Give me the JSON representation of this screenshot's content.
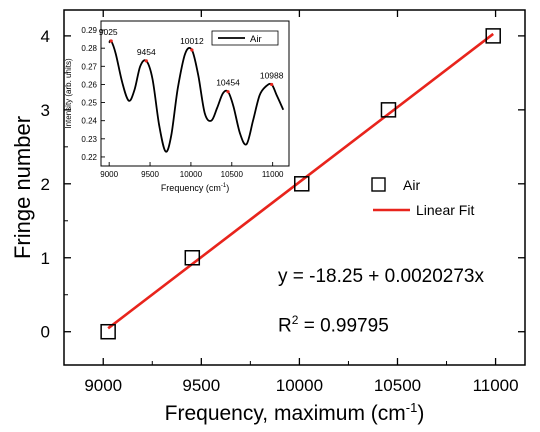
{
  "chart_data": [
    {
      "type": "scatter",
      "role": "main",
      "xlabel": "Frequency, maximum (cm",
      "xlabel_sup": "-1",
      "xlabel_tail": ")",
      "ylabel": "Fringe number",
      "xlim": [
        8800,
        11150
      ],
      "ylim": [
        -0.45,
        4.35
      ],
      "xticks": [
        9000,
        9500,
        10000,
        10500,
        11000
      ],
      "yticks": [
        0,
        1,
        2,
        3,
        4
      ],
      "grid": false,
      "legend_position": "center-right",
      "series": [
        {
          "name": "Air",
          "marker": "open-square",
          "color": "#000000",
          "x": [
            9025,
            9454,
            10012,
            10454,
            10988
          ],
          "y": [
            0,
            1,
            2,
            3,
            4
          ]
        },
        {
          "name": "Linear Fit",
          "kind": "line",
          "color": "#e8241c",
          "x": [
            9025,
            10988
          ],
          "y": [
            0.046,
            4.026
          ]
        }
      ],
      "annotations": {
        "equation": "y = -18.25 + 0.0020273x",
        "r2_label": "R",
        "r2_sup": "2",
        "r2_value": " = 0.99795"
      }
    },
    {
      "type": "line",
      "role": "inset",
      "xlabel": "Frequency (cm",
      "xlabel_sup": "-1",
      "xlabel_tail": ")",
      "ylabel": "Intensity (arb. units)",
      "xlim": [
        8900,
        11200
      ],
      "ylim": [
        0.215,
        0.295
      ],
      "xticks": [
        9000,
        9500,
        10000,
        10500,
        11000
      ],
      "yticks": [
        0.22,
        0.23,
        0.24,
        0.25,
        0.26,
        0.27,
        0.28,
        0.29
      ],
      "legend_position": "top-right",
      "series": [
        {
          "name": "Air",
          "color": "#000000",
          "x": [
            9000,
            9025,
            9080,
            9160,
            9240,
            9310,
            9380,
            9454,
            9530,
            9610,
            9690,
            9760,
            9840,
            9930,
            10012,
            10090,
            10170,
            10250,
            10320,
            10390,
            10454,
            10520,
            10600,
            10680,
            10760,
            10840,
            10920,
            10988,
            11050,
            11130
          ],
          "y": [
            0.283,
            0.284,
            0.277,
            0.261,
            0.251,
            0.257,
            0.27,
            0.273,
            0.263,
            0.238,
            0.223,
            0.232,
            0.258,
            0.277,
            0.279,
            0.265,
            0.244,
            0.24,
            0.247,
            0.255,
            0.256,
            0.248,
            0.233,
            0.227,
            0.24,
            0.254,
            0.259,
            0.26,
            0.254,
            0.246
          ]
        }
      ],
      "peaks": [
        {
          "x": 9025,
          "y": 0.284,
          "label": "9025"
        },
        {
          "x": 9454,
          "y": 0.273,
          "label": "9454"
        },
        {
          "x": 10012,
          "y": 0.279,
          "label": "10012"
        },
        {
          "x": 10454,
          "y": 0.256,
          "label": "10454"
        },
        {
          "x": 10988,
          "y": 0.26,
          "label": "10988"
        }
      ]
    }
  ]
}
